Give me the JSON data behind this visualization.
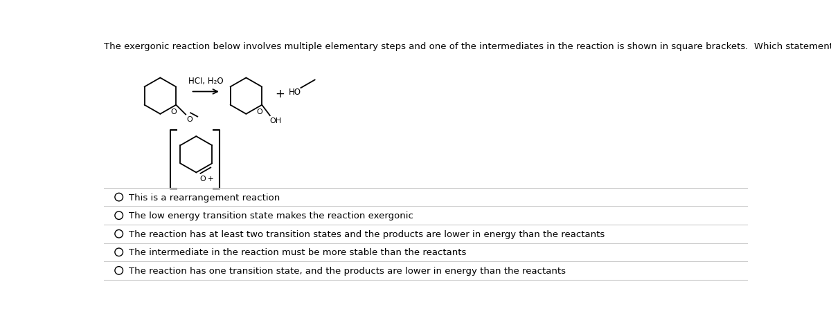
{
  "title_text": "The exergonic reaction below involves multiple elementary steps and one of the intermediates in the reaction is shown in square brackets.  Which statement is consistent with this reaction?",
  "title_fontsize": 9.5,
  "title_color": "#000000",
  "reagent_label": "HCI, H₂O",
  "reagent_color": "#000000",
  "options": [
    "This is a rearrangement reaction",
    "The low energy transition state makes the reaction exergonic",
    "The reaction has at least two transition states and the products are lower in energy than the reactants",
    "The intermediate in the reaction must be more stable than the reactants",
    "The reaction has one transition state, and the products are lower in energy than the reactants"
  ],
  "option_fontsize": 9.5,
  "option_color": "#000000",
  "option_circle_color": "#000000",
  "divider_color": "#cccccc",
  "background_color": "#ffffff",
  "structure_color": "#000000"
}
